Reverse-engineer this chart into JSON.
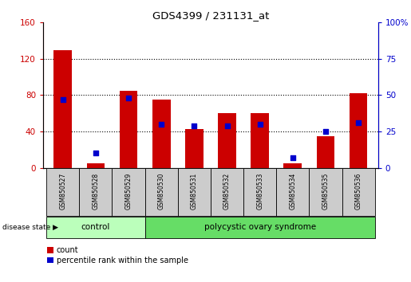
{
  "title": "GDS4399 / 231131_at",
  "samples": [
    "GSM850527",
    "GSM850528",
    "GSM850529",
    "GSM850530",
    "GSM850531",
    "GSM850532",
    "GSM850533",
    "GSM850534",
    "GSM850535",
    "GSM850536"
  ],
  "count_values": [
    130,
    5,
    85,
    75,
    43,
    60,
    60,
    5,
    35,
    82
  ],
  "percentile_values": [
    47,
    10,
    48,
    30,
    29,
    29,
    30,
    7,
    25,
    31
  ],
  "left_ylim": [
    0,
    160
  ],
  "right_ylim": [
    0,
    100
  ],
  "left_yticks": [
    0,
    40,
    80,
    120,
    160
  ],
  "right_yticks": [
    0,
    25,
    50,
    75,
    100
  ],
  "right_yticklabels": [
    "0",
    "25",
    "50",
    "75",
    "100%"
  ],
  "left_color": "#cc0000",
  "right_color": "#0000cc",
  "bar_color": "#cc0000",
  "dot_color": "#0000cc",
  "control_samples": 3,
  "control_label": "control",
  "disease_label": "polycystic ovary syndrome",
  "disease_state_label": "disease state",
  "control_color": "#bbffbb",
  "disease_color": "#66dd66",
  "legend_count": "count",
  "legend_percentile": "percentile rank within the sample",
  "bar_width": 0.55,
  "group_bg": "#cccccc"
}
